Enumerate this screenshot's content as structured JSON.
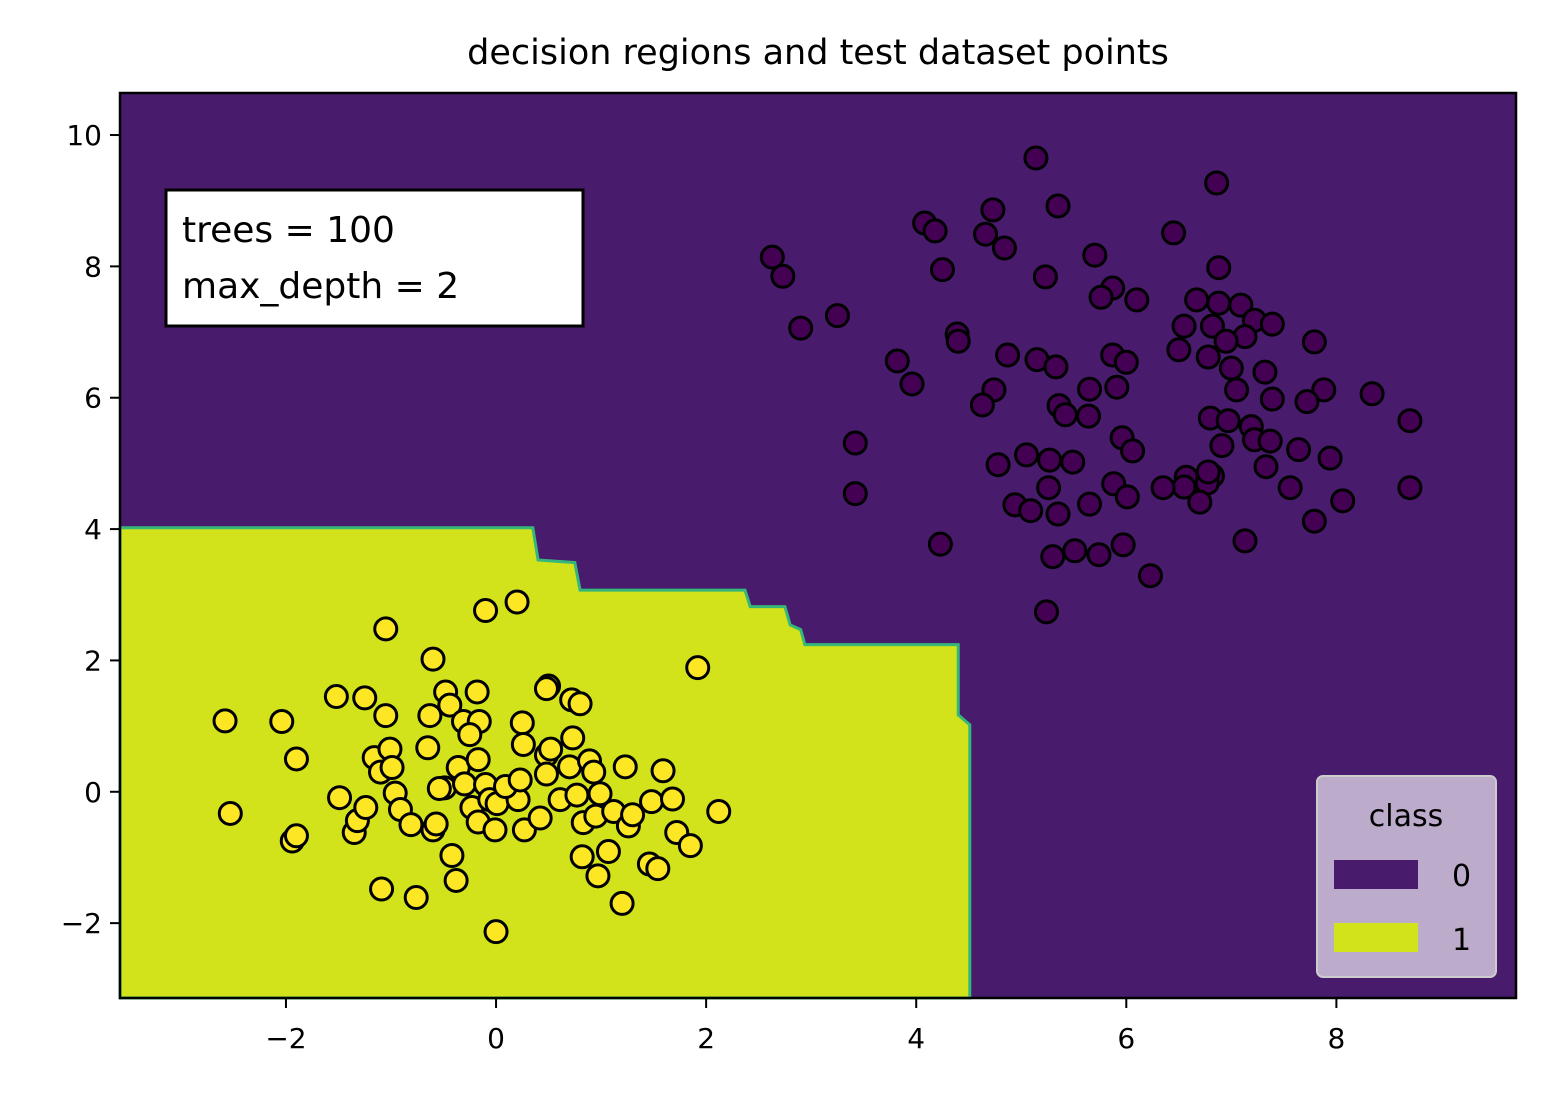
{
  "chart_data": {
    "type": "scatter",
    "title": "decision regions and test dataset points",
    "xlabel": "",
    "ylabel": "",
    "xlim": [
      -3.58,
      9.71
    ],
    "ylim": [
      -3.14,
      10.64
    ],
    "xticks": [
      -2,
      0,
      2,
      4,
      6,
      8
    ],
    "xtick_labels": [
      "−2",
      "0",
      "2",
      "4",
      "6",
      "8"
    ],
    "yticks": [
      -2,
      0,
      2,
      4,
      6,
      8,
      10
    ],
    "ytick_labels": [
      "−2",
      "0",
      "2",
      "4",
      "6",
      "8",
      "10"
    ],
    "grid": false,
    "annotation": [
      "trees = 100",
      "max_depth = 2"
    ],
    "legend": {
      "title": "class",
      "placement": "lower-right",
      "entries": [
        "0",
        "1"
      ]
    },
    "colors": {
      "region0": "#481b6d",
      "region1": "#d2e21b",
      "point0": "#440154",
      "point1": "#fde725",
      "legend_bg": "#d9d0e1"
    },
    "region1_boundary": [
      [
        -3.58,
        4.02
      ],
      [
        0.35,
        4.02
      ],
      [
        0.4,
        3.53
      ],
      [
        0.75,
        3.49
      ],
      [
        0.8,
        3.07
      ],
      [
        2.37,
        3.07
      ],
      [
        2.42,
        2.82
      ],
      [
        2.75,
        2.82
      ],
      [
        2.8,
        2.54
      ],
      [
        2.9,
        2.47
      ],
      [
        2.94,
        2.24
      ],
      [
        4.4,
        2.24
      ],
      [
        4.4,
        1.17
      ],
      [
        4.51,
        1.02
      ],
      [
        4.51,
        -3.14
      ],
      [
        -3.58,
        -3.14
      ]
    ],
    "series": [
      {
        "name": "0",
        "points": [
          [
            5.14,
            9.65
          ],
          [
            6.86,
            9.27
          ],
          [
            4.08,
            8.66
          ],
          [
            4.18,
            8.54
          ],
          [
            4.73,
            8.86
          ],
          [
            5.35,
            8.92
          ],
          [
            4.66,
            8.49
          ],
          [
            4.84,
            8.28
          ],
          [
            6.45,
            8.51
          ],
          [
            2.63,
            8.14
          ],
          [
            2.73,
            7.85
          ],
          [
            4.25,
            7.95
          ],
          [
            5.23,
            7.84
          ],
          [
            5.7,
            8.17
          ],
          [
            6.88,
            7.98
          ],
          [
            5.87,
            7.67
          ],
          [
            5.76,
            7.53
          ],
          [
            6.1,
            7.49
          ],
          [
            6.67,
            7.49
          ],
          [
            6.88,
            7.44
          ],
          [
            7.09,
            7.41
          ],
          [
            7.22,
            7.18
          ],
          [
            7.39,
            7.12
          ],
          [
            3.25,
            7.25
          ],
          [
            2.9,
            7.06
          ],
          [
            4.39,
            6.97
          ],
          [
            4.4,
            6.86
          ],
          [
            6.55,
            7.09
          ],
          [
            6.82,
            7.09
          ],
          [
            7.13,
            6.93
          ],
          [
            6.95,
            6.86
          ],
          [
            3.82,
            6.56
          ],
          [
            4.87,
            6.65
          ],
          [
            5.15,
            6.58
          ],
          [
            5.33,
            6.47
          ],
          [
            5.87,
            6.65
          ],
          [
            6.0,
            6.54
          ],
          [
            6.5,
            6.73
          ],
          [
            6.78,
            6.62
          ],
          [
            7.0,
            6.45
          ],
          [
            7.32,
            6.39
          ],
          [
            7.79,
            6.85
          ],
          [
            3.96,
            6.21
          ],
          [
            4.74,
            6.12
          ],
          [
            5.65,
            6.13
          ],
          [
            5.91,
            6.16
          ],
          [
            7.05,
            6.12
          ],
          [
            7.88,
            6.12
          ],
          [
            8.34,
            6.06
          ],
          [
            4.63,
            5.89
          ],
          [
            5.36,
            5.88
          ],
          [
            5.42,
            5.74
          ],
          [
            5.64,
            5.72
          ],
          [
            7.39,
            5.98
          ],
          [
            7.72,
            5.94
          ],
          [
            8.7,
            5.65
          ],
          [
            6.8,
            5.69
          ],
          [
            6.97,
            5.65
          ],
          [
            7.19,
            5.56
          ],
          [
            7.22,
            5.36
          ],
          [
            7.37,
            5.34
          ],
          [
            5.96,
            5.39
          ],
          [
            6.06,
            5.19
          ],
          [
            3.42,
            5.31
          ],
          [
            4.78,
            4.98
          ],
          [
            5.05,
            5.13
          ],
          [
            5.27,
            5.05
          ],
          [
            5.49,
            5.02
          ],
          [
            6.91,
            5.27
          ],
          [
            7.64,
            5.21
          ],
          [
            7.94,
            5.08
          ],
          [
            7.33,
            4.95
          ],
          [
            6.57,
            4.79
          ],
          [
            6.82,
            4.81
          ],
          [
            6.55,
            4.64
          ],
          [
            6.35,
            4.63
          ],
          [
            6.77,
            4.7
          ],
          [
            6.7,
            4.41
          ],
          [
            4.94,
            4.37
          ],
          [
            5.09,
            4.28
          ],
          [
            5.26,
            4.63
          ],
          [
            5.35,
            4.23
          ],
          [
            5.65,
            4.38
          ],
          [
            5.88,
            4.69
          ],
          [
            6.01,
            4.49
          ],
          [
            7.56,
            4.63
          ],
          [
            8.06,
            4.43
          ],
          [
            8.7,
            4.63
          ],
          [
            7.79,
            4.12
          ],
          [
            3.42,
            4.54
          ],
          [
            4.23,
            3.77
          ],
          [
            7.13,
            3.82
          ],
          [
            5.3,
            3.58
          ],
          [
            5.51,
            3.67
          ],
          [
            5.74,
            3.61
          ],
          [
            5.97,
            3.76
          ],
          [
            6.23,
            3.29
          ],
          [
            5.24,
            2.74
          ],
          [
            6.78,
            4.87
          ]
        ]
      },
      {
        "name": "1",
        "points": [
          [
            -2.58,
            1.08
          ],
          [
            -2.53,
            -0.33
          ],
          [
            -2.04,
            1.07
          ],
          [
            -1.9,
            0.5
          ],
          [
            -1.94,
            -0.75
          ],
          [
            -1.9,
            -0.67
          ],
          [
            -1.52,
            1.45
          ],
          [
            -1.25,
            1.43
          ],
          [
            -1.05,
            2.48
          ],
          [
            -1.05,
            1.16
          ],
          [
            -1.49,
            -0.09
          ],
          [
            -1.35,
            -0.62
          ],
          [
            -1.32,
            -0.44
          ],
          [
            -1.24,
            -0.24
          ],
          [
            -1.16,
            0.52
          ],
          [
            -1.1,
            0.3
          ],
          [
            -1.01,
            0.65
          ],
          [
            -0.99,
            0.37
          ],
          [
            -0.96,
            -0.02
          ],
          [
            -0.91,
            -0.27
          ],
          [
            -0.81,
            -0.5
          ],
          [
            -0.76,
            -1.61
          ],
          [
            -1.09,
            -1.48
          ],
          [
            -0.6,
            2.02
          ],
          [
            -0.65,
            0.67
          ],
          [
            -0.63,
            1.16
          ],
          [
            -0.6,
            -0.58
          ],
          [
            -0.57,
            -0.49
          ],
          [
            -0.48,
            1.52
          ],
          [
            -0.44,
            1.32
          ],
          [
            -0.49,
            0.06
          ],
          [
            -0.42,
            -0.97
          ],
          [
            -0.38,
            -1.35
          ],
          [
            -0.36,
            0.37
          ],
          [
            -0.31,
            1.07
          ],
          [
            -0.3,
            0.12
          ],
          [
            -0.23,
            -0.24
          ],
          [
            -0.18,
            1.52
          ],
          [
            -0.16,
            1.07
          ],
          [
            -0.17,
            0.49
          ],
          [
            -0.17,
            -0.46
          ],
          [
            -0.1,
            0.11
          ],
          [
            -0.06,
            -0.12
          ],
          [
            -0.01,
            -0.58
          ],
          [
            0.01,
            -0.18
          ],
          [
            -0.1,
            2.76
          ],
          [
            0.2,
            2.89
          ],
          [
            0.25,
            1.05
          ],
          [
            0.26,
            0.72
          ],
          [
            0.21,
            -0.12
          ],
          [
            0.27,
            -0.58
          ],
          [
            0.5,
            1.61
          ],
          [
            0.48,
            1.57
          ],
          [
            0.48,
            0.56
          ],
          [
            0.52,
            0.65
          ],
          [
            0.48,
            0.27
          ],
          [
            0.42,
            -0.4
          ],
          [
            0.61,
            -0.12
          ],
          [
            0.7,
            0.38
          ],
          [
            0.72,
            1.4
          ],
          [
            0.8,
            1.34
          ],
          [
            0.77,
            -0.05
          ],
          [
            0.83,
            -0.47
          ],
          [
            0.82,
            -0.99
          ],
          [
            0.89,
            0.47
          ],
          [
            0.93,
            0.3
          ],
          [
            0.99,
            -0.03
          ],
          [
            0.95,
            -0.37
          ],
          [
            0.97,
            -1.28
          ],
          [
            1.07,
            -0.91
          ],
          [
            1.2,
            -1.7
          ],
          [
            1.12,
            -0.3
          ],
          [
            1.23,
            0.38
          ],
          [
            1.26,
            -0.52
          ],
          [
            1.3,
            -0.35
          ],
          [
            1.48,
            -0.15
          ],
          [
            1.46,
            -1.1
          ],
          [
            1.54,
            -1.17
          ],
          [
            1.59,
            0.32
          ],
          [
            1.68,
            -0.11
          ],
          [
            1.72,
            -0.62
          ],
          [
            1.85,
            -0.82
          ],
          [
            1.92,
            1.89
          ],
          [
            2.12,
            -0.3
          ],
          [
            0.0,
            -2.13
          ],
          [
            -0.54,
            0.05
          ],
          [
            0.73,
            0.82
          ],
          [
            0.09,
            0.08
          ],
          [
            -0.25,
            0.87
          ],
          [
            0.23,
            0.18
          ]
        ]
      }
    ]
  }
}
